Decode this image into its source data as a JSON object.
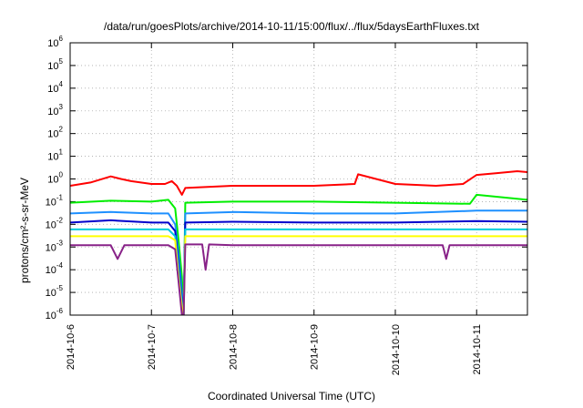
{
  "chart_data": {
    "type": "line",
    "title": "/data/run/goesPlots/archive/2014-10-11/15:00/flux/../flux/5daysEarthFluxes.txt",
    "xlabel": "Coordinated Universal Time (UTC)",
    "ylabel": "protons/cm²-s-sr-MeV",
    "y_scale": "log",
    "ylim": [
      1e-06,
      1000000.0
    ],
    "y_ticks": [
      {
        "base": "10",
        "exp": "-6"
      },
      {
        "base": "10",
        "exp": "-5"
      },
      {
        "base": "10",
        "exp": "-4"
      },
      {
        "base": "10",
        "exp": "-3"
      },
      {
        "base": "10",
        "exp": "-2"
      },
      {
        "base": "10",
        "exp": "-1"
      },
      {
        "base": "10",
        "exp": "0"
      },
      {
        "base": "10",
        "exp": "1"
      },
      {
        "base": "10",
        "exp": "2"
      },
      {
        "base": "10",
        "exp": "3"
      },
      {
        "base": "10",
        "exp": "4"
      },
      {
        "base": "10",
        "exp": "5"
      },
      {
        "base": "10",
        "exp": "6"
      }
    ],
    "x_ticks": [
      "2014-10-6",
      "2014-10-7",
      "2014-10-8",
      "2014-10-9",
      "2014-10-10",
      "2014-10-11"
    ],
    "xlim": [
      "2014-10-06 00:00",
      "2014-10-11 15:00"
    ],
    "grid": "dotted",
    "legend": "none",
    "series": [
      {
        "color": "#ff0000",
        "x": [
          "2014-10-06 00:00",
          "2014-10-06 06:00",
          "2014-10-06 12:00",
          "2014-10-06 15:00",
          "2014-10-06 18:00",
          "2014-10-07 00:00",
          "2014-10-07 04:00",
          "2014-10-07 06:00",
          "2014-10-07 07:30",
          "2014-10-07 09:00",
          "2014-10-07 10:00",
          "2014-10-08 00:00",
          "2014-10-08 12:00",
          "2014-10-09 00:00",
          "2014-10-09 12:00",
          "2014-10-09 13:00",
          "2014-10-10 00:00",
          "2014-10-10 12:00",
          "2014-10-10 20:00",
          "2014-10-11 00:00",
          "2014-10-11 06:00",
          "2014-10-11 12:00",
          "2014-10-11 15:00"
        ],
        "y": [
          0.5,
          0.7,
          1.3,
          1.0,
          0.8,
          0.6,
          0.6,
          0.8,
          0.5,
          0.2,
          0.4,
          0.5,
          0.5,
          0.5,
          0.6,
          1.6,
          0.6,
          0.5,
          0.6,
          1.5,
          1.8,
          2.2,
          2.0
        ]
      },
      {
        "color": "#00ee00",
        "x": [
          "2014-10-06 00:00",
          "2014-10-06 12:00",
          "2014-10-07 00:00",
          "2014-10-07 05:00",
          "2014-10-07 07:00",
          "2014-10-07 08:00",
          "2014-10-07 09:00",
          "2014-10-07 09:30",
          "2014-10-07 10:00",
          "2014-10-08 00:00",
          "2014-10-09 00:00",
          "2014-10-10 00:00",
          "2014-10-10 22:00",
          "2014-10-11 00:00",
          "2014-10-11 15:00"
        ],
        "y": [
          0.09,
          0.11,
          0.1,
          0.12,
          0.05,
          0.002,
          5e-05,
          1e-06,
          0.09,
          0.1,
          0.1,
          0.09,
          0.08,
          0.2,
          0.12
        ]
      },
      {
        "color": "#1e90ff",
        "x": [
          "2014-10-06 00:00",
          "2014-10-06 12:00",
          "2014-10-07 00:00",
          "2014-10-07 05:00",
          "2014-10-07 07:00",
          "2014-10-07 08:00",
          "2014-10-07 09:00",
          "2014-10-07 09:30",
          "2014-10-07 10:00",
          "2014-10-08 00:00",
          "2014-10-09 00:00",
          "2014-10-10 00:00",
          "2014-10-11 00:00",
          "2014-10-11 15:00"
        ],
        "y": [
          0.03,
          0.035,
          0.03,
          0.03,
          0.01,
          0.0005,
          1e-05,
          1e-06,
          0.03,
          0.035,
          0.03,
          0.03,
          0.04,
          0.04
        ]
      },
      {
        "color": "#0000cc",
        "x": [
          "2014-10-06 00:00",
          "2014-10-06 12:00",
          "2014-10-07 00:00",
          "2014-10-07 05:00",
          "2014-10-07 07:00",
          "2014-10-07 08:00",
          "2014-10-07 09:00",
          "2014-10-07 09:30",
          "2014-10-07 10:00",
          "2014-10-08 00:00",
          "2014-10-09 00:00",
          "2014-10-10 00:00",
          "2014-10-11 00:00",
          "2014-10-11 15:00"
        ],
        "y": [
          0.012,
          0.015,
          0.012,
          0.012,
          0.005,
          0.0002,
          5e-06,
          1e-06,
          0.012,
          0.013,
          0.012,
          0.012,
          0.014,
          0.013
        ]
      },
      {
        "color": "#00ccdd",
        "x": [
          "2014-10-06 00:00",
          "2014-10-07 00:00",
          "2014-10-07 05:00",
          "2014-10-07 07:00",
          "2014-10-07 08:00",
          "2014-10-07 09:00",
          "2014-10-07 09:30",
          "2014-10-07 10:00",
          "2014-10-08 00:00",
          "2014-10-09 00:00",
          "2014-10-10 00:00",
          "2014-10-11 00:00",
          "2014-10-11 15:00"
        ],
        "y": [
          0.006,
          0.006,
          0.006,
          0.003,
          0.0001,
          3e-06,
          1e-06,
          0.006,
          0.006,
          0.006,
          0.006,
          0.006,
          0.006
        ]
      },
      {
        "color": "#ffff00",
        "x": [
          "2014-10-06 00:00",
          "2014-10-07 00:00",
          "2014-10-07 05:00",
          "2014-10-07 07:00",
          "2014-10-07 08:00",
          "2014-10-07 09:00",
          "2014-10-07 09:30",
          "2014-10-07 10:00",
          "2014-10-08 00:00",
          "2014-10-09 00:00",
          "2014-10-10 00:00",
          "2014-10-11 00:00",
          "2014-10-11 15:00"
        ],
        "y": [
          0.003,
          0.003,
          0.003,
          0.002,
          5e-05,
          2e-06,
          1e-06,
          0.003,
          0.003,
          0.003,
          0.003,
          0.003,
          0.003
        ]
      },
      {
        "color": "#882288",
        "x": [
          "2014-10-06 00:00",
          "2014-10-06 12:00",
          "2014-10-06 14:00",
          "2014-10-06 16:00",
          "2014-10-07 00:00",
          "2014-10-07 05:00",
          "2014-10-07 07:00",
          "2014-10-07 08:00",
          "2014-10-07 09:00",
          "2014-10-07 09:30",
          "2014-10-07 10:00",
          "2014-10-07 15:00",
          "2014-10-07 16:00",
          "2014-10-07 17:00",
          "2014-10-08 00:00",
          "2014-10-09 00:00",
          "2014-10-10 00:00",
          "2014-10-10 14:00",
          "2014-10-10 15:00",
          "2014-10-10 16:00",
          "2014-10-11 00:00",
          "2014-10-11 15:00"
        ],
        "y": [
          0.0012,
          0.0012,
          0.0003,
          0.0012,
          0.0012,
          0.0012,
          0.0008,
          3e-05,
          1e-06,
          1e-06,
          0.0013,
          0.0013,
          0.0001,
          0.0013,
          0.0012,
          0.0012,
          0.0012,
          0.0012,
          0.0003,
          0.0012,
          0.0012,
          0.0012
        ]
      }
    ]
  }
}
